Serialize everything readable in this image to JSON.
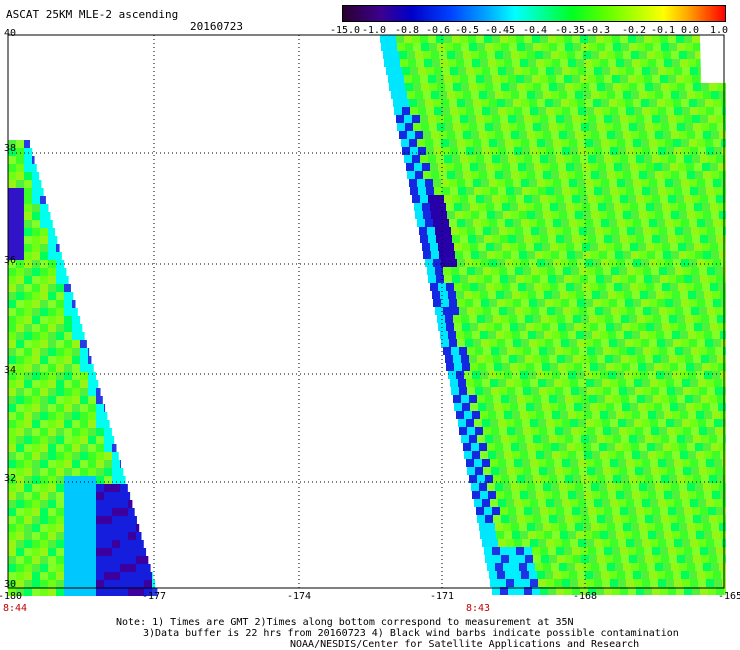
{
  "header": {
    "title": "ASCAT 25KM MLE-2 ascending",
    "date": "20160723"
  },
  "colorbar": {
    "labels": [
      "-15.0",
      "-1.0",
      "-0.8",
      "-0.6",
      "-0.5",
      "-0.45",
      "-0.4",
      "-0.35",
      "-0.3",
      "-0.2",
      "-0.1",
      "0.0",
      "1.0"
    ],
    "colors": {
      "low": "#2a0030",
      "mid": "#00ffff",
      "green": "#00ff22",
      "high": "#ff0000"
    }
  },
  "map": {
    "lat_labels": [
      "40",
      "38",
      "36",
      "34",
      "32",
      "30"
    ],
    "lon_labels": [
      "-180",
      "-177",
      "-174",
      "-171",
      "-168",
      "-165"
    ],
    "time_labels": [
      "8:44",
      "8:43"
    ],
    "grid": true
  },
  "notes": {
    "line1": "Note: 1) Times are GMT 2)Times along bottom correspond to measurement at 35N",
    "line2": "3)Data buffer is 22 hrs from 20160723 4) Black wind barbs indicate possible contamination",
    "line3": "NOAA/NESDIS/Center for Satellite Applications and Research"
  }
}
